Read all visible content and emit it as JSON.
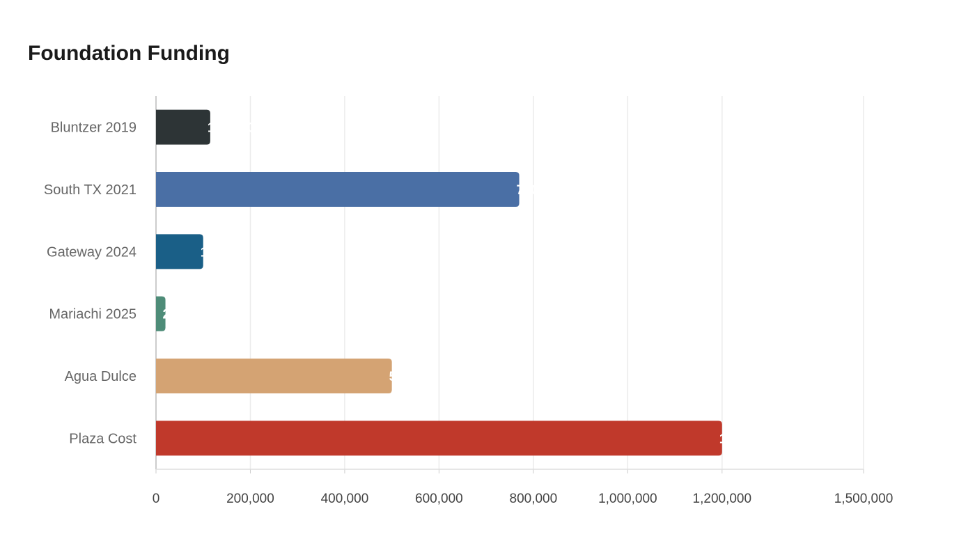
{
  "chart_data": {
    "type": "bar",
    "orientation": "horizontal",
    "title": "Foundation Funding",
    "xlabel": "",
    "ylabel": "",
    "categories": [
      "Bluntzer 2019",
      "South TX 2021",
      "Gateway 2024",
      "Mariachi 2025",
      "Agua Dulce",
      "Plaza Cost"
    ],
    "values": [
      115000,
      770000,
      100000,
      20000,
      500000,
      1200000
    ],
    "data_labels": [
      "115,000",
      "770,000",
      "100,000",
      "20,000",
      "500,000",
      "1,200,000"
    ],
    "colors": [
      "#2d3436",
      "#4a6fa5",
      "#1a5f87",
      "#4e8c78",
      "#d4a373",
      "#c0392b"
    ],
    "xlim": [
      0,
      1500000
    ],
    "xticks": [
      0,
      200000,
      400000,
      600000,
      800000,
      1000000,
      1200000,
      1500000
    ],
    "xtick_labels": [
      "0",
      "200,000",
      "400,000",
      "600,000",
      "800,000",
      "1,000,000",
      "1,200,000",
      "1,500,000"
    ],
    "grid": true,
    "legend": "none"
  }
}
